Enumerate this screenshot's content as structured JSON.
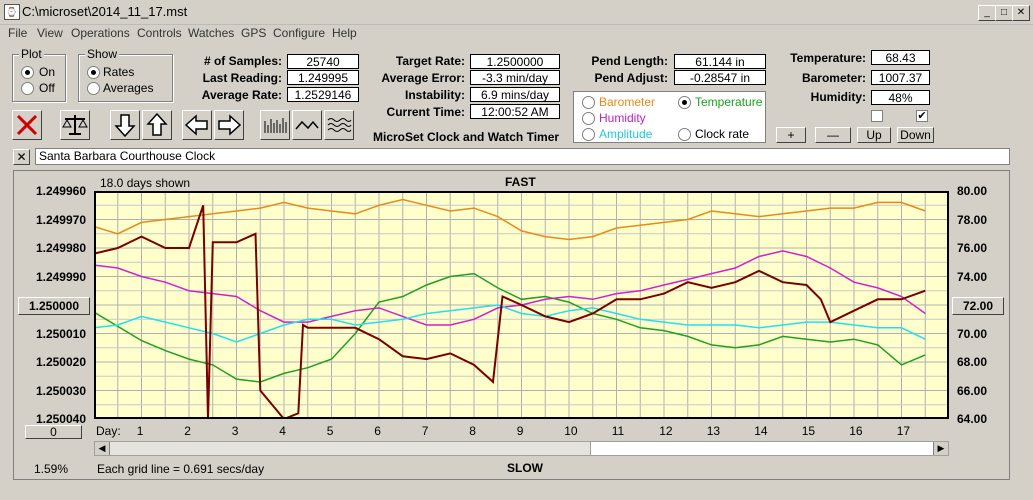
{
  "window": {
    "title": "C:\\microset\\2014_11_17.mst"
  },
  "menu": [
    "File",
    "View",
    "Operations",
    "Controls",
    "Watches",
    "GPS",
    "Configure",
    "Help"
  ],
  "plot_group": {
    "title": "Plot",
    "on": "On",
    "off": "Off",
    "selected": "On"
  },
  "show_group": {
    "title": "Show",
    "rates": "Rates",
    "averages": "Averages",
    "selected": "Rates"
  },
  "stats": {
    "samples_label": "# of Samples:",
    "samples": "25740",
    "last_label": "Last Reading:",
    "last": "1.249995",
    "avg_label": "Average Rate:",
    "avg": "1.2529146",
    "target_label": "Target Rate:",
    "target": "1.2500000",
    "avgerr_label": "Average Error:",
    "avgerr": "-3.3 min/day",
    "instab_label": "Instability:",
    "instab": "6.9 mins/day",
    "time_label": "Current Time:",
    "time": "12:00:52 AM",
    "pendlen_label": "Pend Length:",
    "pendlen": "61.144 in",
    "pendadj_label": "Pend Adjust:",
    "pendadj": "-0.28547 in",
    "temp_label": "Temperature:",
    "temp": "68.43",
    "baro_label": "Barometer:",
    "baro": "1007.37",
    "hum_label": "Humidity:",
    "hum": "48%"
  },
  "app_label": "MicroSet Clock and Watch Timer",
  "sensor_group": {
    "barometer": "Barometer",
    "temperature": "Temperature",
    "humidity": "Humidity",
    "amplitude": "Amplitude",
    "clock_rate": "Clock rate",
    "selected": "Temperature"
  },
  "adjust_buttons": {
    "plus": "+",
    "minus": "—",
    "up": "Up",
    "down": "Down"
  },
  "description": "Santa Barbara Courthouse Clock",
  "chart_info": {
    "days_shown": "18.0 days shown",
    "fast": "FAST",
    "slow": "SLOW",
    "percent": "1.59%",
    "grid_note": "Each grid line = 0.691 secs/day",
    "center_value": "1.250000",
    "right_center": "72.00",
    "offset_box": "0",
    "day_label": "Day:"
  },
  "colors": {
    "temperature": "#e88a1a",
    "rate": "#7a0000",
    "humidity": "#d020d0",
    "amplitude": "#20e0f0",
    "barometer": "#20a020",
    "plot_bg": "#ffffcc"
  },
  "chart_data": {
    "type": "line",
    "title": "FAST",
    "y_left_ticks": [
      "1.249960",
      "1.249970",
      "1.249980",
      "1.249990",
      "1.250000",
      "1.250010",
      "1.250020",
      "1.250030",
      "1.250040"
    ],
    "y_right_ticks": [
      "80.00",
      "78.00",
      "76.00",
      "74.00",
      "72.00",
      "70.00",
      "68.00",
      "66.00",
      "64.00"
    ],
    "x_ticks": [
      "1",
      "2",
      "3",
      "4",
      "5",
      "6",
      "7",
      "8",
      "9",
      "10",
      "11",
      "12",
      "13",
      "14",
      "15",
      "16",
      "17"
    ],
    "xlim": [
      0,
      18
    ],
    "y_left_range": [
      1.24996,
      1.25004
    ],
    "y_right_range": [
      64,
      80
    ],
    "series": [
      {
        "name": "Temperature",
        "color": "#e88a1a",
        "x": [
          0,
          0.5,
          1,
          1.5,
          2,
          2.5,
          3,
          3.5,
          4,
          4.5,
          5,
          5.5,
          6,
          6.5,
          7,
          7.5,
          8,
          8.5,
          9,
          9.5,
          10,
          10.5,
          11,
          11.5,
          12,
          12.5,
          13,
          13.5,
          14,
          14.5,
          15,
          15.5,
          16,
          16.5,
          17,
          17.5
        ],
        "y": [
          77.5,
          77,
          77.8,
          78,
          78.2,
          78.4,
          78.6,
          78.8,
          79.2,
          78.8,
          78.6,
          78.4,
          79,
          79.4,
          79,
          78.6,
          78.8,
          78.2,
          77.2,
          76.8,
          76.6,
          76.8,
          77.4,
          77.6,
          77.8,
          78,
          78.6,
          78.4,
          78.2,
          78.4,
          78.6,
          78.8,
          78.8,
          79.2,
          79.2,
          78.6
        ]
      },
      {
        "name": "Barometer",
        "color": "#20a020",
        "x": [
          0,
          0.5,
          1,
          1.5,
          2,
          2.5,
          3,
          3.5,
          4,
          4.5,
          5,
          5.5,
          6,
          6.5,
          7,
          7.5,
          8,
          8.5,
          9,
          9.5,
          10,
          10.5,
          11,
          11.5,
          12,
          12.5,
          13,
          13.5,
          14,
          14.5,
          15,
          15.5,
          16,
          16.5,
          17,
          17.5
        ],
        "y": [
          71.5,
          70.5,
          69.5,
          68.8,
          68.2,
          67.8,
          66.8,
          66.6,
          67.2,
          67.6,
          68.2,
          70,
          72.2,
          72.6,
          73.4,
          74,
          74.2,
          73.2,
          72.4,
          72.6,
          72.2,
          71.4,
          71,
          70.4,
          70.2,
          69.8,
          69.2,
          69,
          69.2,
          69.8,
          69.6,
          69.4,
          69.6,
          69.2,
          67.8,
          68.5
        ]
      },
      {
        "name": "Humidity",
        "color": "#d020d0",
        "x": [
          0,
          0.5,
          1,
          1.5,
          2,
          2.5,
          3,
          3.5,
          4,
          4.5,
          5,
          5.5,
          6,
          6.5,
          7,
          7.5,
          8,
          8.5,
          9,
          9.5,
          10,
          10.5,
          11,
          11.5,
          12,
          12.5,
          13,
          13.5,
          14,
          14.5,
          15,
          15.5,
          16,
          16.5,
          17,
          17.5
        ],
        "y": [
          74.8,
          74.6,
          74,
          73.6,
          73,
          72.8,
          72.6,
          71.6,
          70.8,
          70.8,
          71.2,
          71.6,
          71.8,
          71.2,
          70.6,
          70.6,
          71,
          71.8,
          72,
          72.4,
          72.6,
          72.4,
          72.8,
          73,
          73.4,
          73.8,
          74.2,
          74.6,
          75.4,
          75.8,
          75.4,
          74.6,
          73.6,
          73.2,
          72.6,
          71.4
        ]
      },
      {
        "name": "Amplitude",
        "color": "#20e0f0",
        "x": [
          0,
          0.5,
          1,
          1.5,
          2,
          2.5,
          3,
          3.5,
          4,
          4.5,
          5,
          5.5,
          6,
          6.5,
          7,
          7.5,
          8,
          8.5,
          9,
          9.5,
          10,
          10.5,
          11,
          11.5,
          12,
          12.5,
          13,
          13.5,
          14,
          14.5,
          15,
          15.5,
          16,
          16.5,
          17,
          17.5
        ],
        "y": [
          70.4,
          70.6,
          71.2,
          70.8,
          70.4,
          70,
          69.4,
          70,
          70.6,
          71,
          71,
          70.6,
          70.8,
          71,
          71.4,
          71.6,
          71.8,
          72,
          71.4,
          71.2,
          71.6,
          71.8,
          71.4,
          71,
          70.8,
          70.6,
          70.6,
          70.6,
          70.4,
          70.6,
          70.8,
          70.8,
          70.6,
          70.4,
          70.4,
          69.6
        ]
      },
      {
        "name": "Clock rate",
        "color": "#7a0000",
        "x": [
          0,
          0.5,
          1,
          1.5,
          2,
          2.3,
          2.4,
          2.5,
          3,
          3.4,
          3.5,
          4,
          4.3,
          4.4,
          4.5,
          5,
          5.5,
          6,
          6.5,
          7,
          7.5,
          8,
          8.4,
          8.6,
          9,
          9.5,
          10,
          10.5,
          11,
          11.5,
          12,
          12.5,
          13,
          13.5,
          14,
          14.5,
          15,
          15.3,
          15.5,
          16,
          16.5,
          17,
          17.5
        ],
        "y": [
          1.249982,
          1.24998,
          1.249976,
          1.24998,
          1.24998,
          1.249965,
          1.25004,
          1.249978,
          1.249978,
          1.249975,
          1.25003,
          1.25004,
          1.250038,
          1.250007,
          1.250008,
          1.250008,
          1.250008,
          1.250012,
          1.250018,
          1.250019,
          1.250017,
          1.250021,
          1.250027,
          1.249997,
          1.25,
          1.250004,
          1.250006,
          1.250003,
          1.249998,
          1.249998,
          1.249996,
          1.249992,
          1.249994,
          1.249992,
          1.249988,
          1.249992,
          1.249993,
          1.249998,
          1.250006,
          1.250002,
          1.249998,
          1.249998,
          1.249995
        ]
      }
    ]
  }
}
